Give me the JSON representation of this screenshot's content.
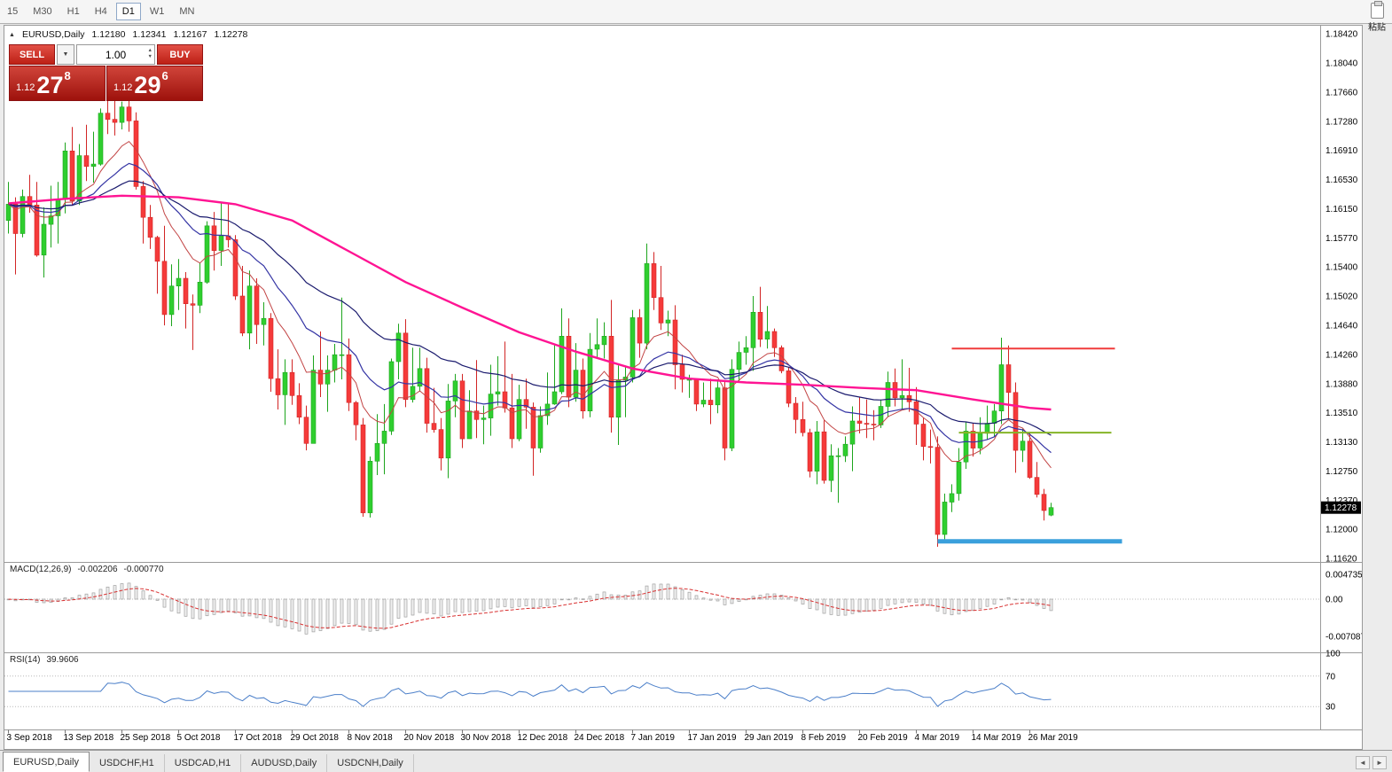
{
  "icons": {
    "collapse": "▲",
    "dropdown": "▼",
    "spin_up": "▲",
    "spin_down": "▼",
    "tab_left": "◄",
    "tab_right": "►"
  },
  "toolbar": {
    "timeframes": [
      "15",
      "M30",
      "H1",
      "H4",
      "D1",
      "W1",
      "MN"
    ],
    "active_timeframe": "D1",
    "paste_label": "粘贴"
  },
  "header": {
    "symbol_period": "EURUSD,Daily",
    "open": "1.12180",
    "high": "1.12341",
    "low": "1.12167",
    "close": "1.12278"
  },
  "trade": {
    "sell_label": "SELL",
    "buy_label": "BUY",
    "volume": "1.00",
    "sell_price": {
      "prefix": "1.12",
      "big": "27",
      "sup": "8"
    },
    "buy_price": {
      "prefix": "1.12",
      "big": "29",
      "sup": "6"
    }
  },
  "indicators": {
    "macd": {
      "name": "MACD(12,26,9)",
      "value_main": "-0.002206",
      "value_signal": "-0.000770",
      "axis_labels": [
        "0.004735",
        "0.00",
        "-0.007087"
      ]
    },
    "rsi": {
      "name": "RSI(14)",
      "value": "39.9606",
      "axis_labels": [
        "100",
        "70",
        "30"
      ]
    }
  },
  "price_scale": {
    "labels": [
      "1.18420",
      "1.18040",
      "1.17660",
      "1.17280",
      "1.16910",
      "1.16530",
      "1.16150",
      "1.15770",
      "1.15400",
      "1.15020",
      "1.14640",
      "1.14260",
      "1.13880",
      "1.13510",
      "1.13130",
      "1.12750",
      "1.12370",
      "1.12000",
      "1.11620"
    ],
    "current_price_tag": "1.12278"
  },
  "time_axis": {
    "labels": [
      {
        "index": 0,
        "label": "3 Sep 2018"
      },
      {
        "index": 8,
        "label": "13 Sep 2018"
      },
      {
        "index": 16,
        "label": "25 Sep 2018"
      },
      {
        "index": 24,
        "label": "5 Oct 2018"
      },
      {
        "index": 32,
        "label": "17 Oct 2018"
      },
      {
        "index": 40,
        "label": "29 Oct 2018"
      },
      {
        "index": 48,
        "label": "8 Nov 2018"
      },
      {
        "index": 56,
        "label": "20 Nov 2018"
      },
      {
        "index": 64,
        "label": "30 Nov 2018"
      },
      {
        "index": 72,
        "label": "12 Dec 2018"
      },
      {
        "index": 80,
        "label": "24 Dec 2018"
      },
      {
        "index": 88,
        "label": "7 Jan 2019"
      },
      {
        "index": 96,
        "label": "17 Jan 2019"
      },
      {
        "index": 104,
        "label": "29 Jan 2019"
      },
      {
        "index": 112,
        "label": "8 Feb 2019"
      },
      {
        "index": 120,
        "label": "20 Feb 2019"
      },
      {
        "index": 128,
        "label": "4 Mar 2019"
      },
      {
        "index": 136,
        "label": "14 Mar 2019"
      },
      {
        "index": 144,
        "label": "26 Mar 2019"
      }
    ]
  },
  "tabs": {
    "items": [
      {
        "label": "EURUSD,Daily",
        "active": true
      },
      {
        "label": "USDCHF,H1",
        "active": false
      },
      {
        "label": "USDCAD,H1",
        "active": false
      },
      {
        "label": "AUDUSD,Daily",
        "active": false
      },
      {
        "label": "USDCNH,Daily",
        "active": false
      }
    ]
  },
  "chart_data": {
    "type": "candlestick",
    "symbol": "EURUSD",
    "period": "Daily",
    "ylim": [
      1.1162,
      1.1842
    ],
    "colors": {
      "up": "#2fce2f",
      "up_stroke": "#1da51d",
      "down": "#f53a3a",
      "down_stroke": "#d22525"
    },
    "candles": [
      [
        1.16,
        1.165,
        1.1583,
        1.1621
      ],
      [
        1.1621,
        1.163,
        1.153,
        1.1583
      ],
      [
        1.1583,
        1.164,
        1.1578,
        1.1631
      ],
      [
        1.1631,
        1.1659,
        1.161,
        1.162
      ],
      [
        1.162,
        1.165,
        1.1553,
        1.1555
      ],
      [
        1.1555,
        1.1617,
        1.1526,
        1.1595
      ],
      [
        1.1595,
        1.1645,
        1.1565,
        1.1606
      ],
      [
        1.1606,
        1.165,
        1.157,
        1.1627
      ],
      [
        1.1627,
        1.1701,
        1.1609,
        1.169
      ],
      [
        1.169,
        1.1721,
        1.162,
        1.1625
      ],
      [
        1.1625,
        1.1699,
        1.162,
        1.1684
      ],
      [
        1.1684,
        1.1724,
        1.1651,
        1.167
      ],
      [
        1.167,
        1.1715,
        1.1649,
        1.1673
      ],
      [
        1.1673,
        1.1745,
        1.1671,
        1.1739
      ],
      [
        1.1739,
        1.1758,
        1.1712,
        1.1731
      ],
      [
        1.1731,
        1.1764,
        1.171,
        1.1727
      ],
      [
        1.1727,
        1.1754,
        1.1718,
        1.1747
      ],
      [
        1.1747,
        1.1759,
        1.1715,
        1.1729
      ],
      [
        1.1729,
        1.174,
        1.164,
        1.1644
      ],
      [
        1.1644,
        1.1651,
        1.157,
        1.1604
      ],
      [
        1.1604,
        1.162,
        1.1563,
        1.1578
      ],
      [
        1.1578,
        1.158,
        1.1505,
        1.1547
      ],
      [
        1.1547,
        1.1593,
        1.1464,
        1.1478
      ],
      [
        1.1478,
        1.1543,
        1.1463,
        1.1515
      ],
      [
        1.1515,
        1.155,
        1.1484,
        1.1525
      ],
      [
        1.1525,
        1.1533,
        1.146,
        1.1492
      ],
      [
        1.1492,
        1.1504,
        1.1432,
        1.149
      ],
      [
        1.149,
        1.1545,
        1.148,
        1.152
      ],
      [
        1.152,
        1.1599,
        1.1518,
        1.1593
      ],
      [
        1.1593,
        1.1611,
        1.1535,
        1.1561
      ],
      [
        1.1561,
        1.1622,
        1.1541,
        1.158
      ],
      [
        1.158,
        1.1621,
        1.1565,
        1.1575
      ],
      [
        1.1575,
        1.1581,
        1.1497,
        1.1502
      ],
      [
        1.1502,
        1.1541,
        1.145,
        1.1454
      ],
      [
        1.1454,
        1.1535,
        1.1433,
        1.1515
      ],
      [
        1.1515,
        1.1525,
        1.144,
        1.1465
      ],
      [
        1.1465,
        1.1494,
        1.1438,
        1.1473
      ],
      [
        1.1473,
        1.148,
        1.1378,
        1.1395
      ],
      [
        1.1395,
        1.1433,
        1.1355,
        1.1374
      ],
      [
        1.1374,
        1.142,
        1.1335,
        1.1403
      ],
      [
        1.1403,
        1.142,
        1.1361,
        1.1373
      ],
      [
        1.1373,
        1.1389,
        1.1336,
        1.1345
      ],
      [
        1.1345,
        1.136,
        1.1302,
        1.1311
      ],
      [
        1.1311,
        1.1425,
        1.1311,
        1.1406
      ],
      [
        1.1406,
        1.1456,
        1.1371,
        1.1388
      ],
      [
        1.1388,
        1.1425,
        1.1352,
        1.1406
      ],
      [
        1.1406,
        1.144,
        1.139,
        1.1426
      ],
      [
        1.1426,
        1.15,
        1.1394,
        1.1426
      ],
      [
        1.1426,
        1.1447,
        1.1353,
        1.1364
      ],
      [
        1.1364,
        1.1366,
        1.1315,
        1.1335
      ],
      [
        1.1335,
        1.1344,
        1.1216,
        1.1221
      ],
      [
        1.1221,
        1.1294,
        1.1215,
        1.1288
      ],
      [
        1.1288,
        1.1349,
        1.127,
        1.1311
      ],
      [
        1.1311,
        1.1362,
        1.1271,
        1.1327
      ],
      [
        1.1327,
        1.1421,
        1.1322,
        1.1417
      ],
      [
        1.1417,
        1.1466,
        1.1394,
        1.1454
      ],
      [
        1.1454,
        1.1472,
        1.1358,
        1.1368
      ],
      [
        1.1368,
        1.1435,
        1.1364,
        1.1385
      ],
      [
        1.1385,
        1.1435,
        1.1378,
        1.1408
      ],
      [
        1.1408,
        1.1422,
        1.1325,
        1.1337
      ],
      [
        1.1337,
        1.1383,
        1.1325,
        1.1329
      ],
      [
        1.1329,
        1.1344,
        1.1276,
        1.1292
      ],
      [
        1.1292,
        1.1388,
        1.1266,
        1.1366
      ],
      [
        1.1366,
        1.1401,
        1.1345,
        1.1392
      ],
      [
        1.1392,
        1.1401,
        1.1305,
        1.1317
      ],
      [
        1.1317,
        1.138,
        1.1317,
        1.1353
      ],
      [
        1.1353,
        1.1419,
        1.1318,
        1.1342
      ],
      [
        1.1342,
        1.136,
        1.131,
        1.1344
      ],
      [
        1.1344,
        1.1413,
        1.1321,
        1.1375
      ],
      [
        1.1375,
        1.1424,
        1.136,
        1.1378
      ],
      [
        1.1378,
        1.1443,
        1.1351,
        1.1357
      ],
      [
        1.1357,
        1.1401,
        1.1305,
        1.1317
      ],
      [
        1.1317,
        1.1387,
        1.1314,
        1.1368
      ],
      [
        1.1368,
        1.1395,
        1.133,
        1.1358
      ],
      [
        1.1358,
        1.1364,
        1.1269,
        1.1305
      ],
      [
        1.1305,
        1.1359,
        1.1299,
        1.1347
      ],
      [
        1.1347,
        1.1403,
        1.1335,
        1.1362
      ],
      [
        1.1362,
        1.144,
        1.1361,
        1.1378
      ],
      [
        1.1378,
        1.1486,
        1.1375,
        1.145
      ],
      [
        1.145,
        1.1473,
        1.1358,
        1.1371
      ],
      [
        1.1371,
        1.1441,
        1.1365,
        1.1406
      ],
      [
        1.1406,
        1.1421,
        1.1343,
        1.1353
      ],
      [
        1.1353,
        1.1454,
        1.1345,
        1.1433
      ],
      [
        1.1433,
        1.1473,
        1.1422,
        1.1439
      ],
      [
        1.1439,
        1.1468,
        1.1421,
        1.145
      ],
      [
        1.145,
        1.1497,
        1.1325,
        1.1345
      ],
      [
        1.1345,
        1.1412,
        1.1309,
        1.1393
      ],
      [
        1.1393,
        1.1411,
        1.1345,
        1.1397
      ],
      [
        1.1397,
        1.1484,
        1.139,
        1.1474
      ],
      [
        1.1474,
        1.1485,
        1.1422,
        1.1441
      ],
      [
        1.1441,
        1.157,
        1.1433,
        1.1544
      ],
      [
        1.1544,
        1.1559,
        1.1484,
        1.15
      ],
      [
        1.15,
        1.1541,
        1.1458,
        1.1467
      ],
      [
        1.1467,
        1.1483,
        1.145,
        1.1471
      ],
      [
        1.1471,
        1.149,
        1.1381,
        1.1413
      ],
      [
        1.1413,
        1.1426,
        1.1377,
        1.1394
      ],
      [
        1.1394,
        1.14,
        1.137,
        1.1394
      ],
      [
        1.1394,
        1.1395,
        1.1353,
        1.1362
      ],
      [
        1.1362,
        1.139,
        1.1358,
        1.1367
      ],
      [
        1.1367,
        1.1395,
        1.1336,
        1.1361
      ],
      [
        1.1361,
        1.1394,
        1.135,
        1.1383
      ],
      [
        1.1383,
        1.1392,
        1.1289,
        1.1305
      ],
      [
        1.1305,
        1.142,
        1.1301,
        1.1407
      ],
      [
        1.1407,
        1.1443,
        1.139,
        1.1429
      ],
      [
        1.1429,
        1.145,
        1.1413,
        1.1435
      ],
      [
        1.1435,
        1.1502,
        1.1405,
        1.1481
      ],
      [
        1.1481,
        1.1514,
        1.1436,
        1.1446
      ],
      [
        1.1446,
        1.1489,
        1.1434,
        1.1456
      ],
      [
        1.1456,
        1.146,
        1.1423,
        1.1435
      ],
      [
        1.1435,
        1.1438,
        1.1402,
        1.1405
      ],
      [
        1.1405,
        1.141,
        1.1358,
        1.1363
      ],
      [
        1.1363,
        1.1371,
        1.1324,
        1.1342
      ],
      [
        1.1342,
        1.1365,
        1.132,
        1.1325
      ],
      [
        1.1325,
        1.133,
        1.1267,
        1.1275
      ],
      [
        1.1275,
        1.134,
        1.1258,
        1.1326
      ],
      [
        1.1326,
        1.1341,
        1.1259,
        1.1263
      ],
      [
        1.1263,
        1.131,
        1.1248,
        1.1295
      ],
      [
        1.1295,
        1.1305,
        1.1234,
        1.1295
      ],
      [
        1.1295,
        1.132,
        1.1287,
        1.131
      ],
      [
        1.131,
        1.1359,
        1.1275,
        1.134
      ],
      [
        1.134,
        1.1371,
        1.1324,
        1.1337
      ],
      [
        1.1337,
        1.1368,
        1.1318,
        1.1336
      ],
      [
        1.1336,
        1.1354,
        1.1315,
        1.1335
      ],
      [
        1.1335,
        1.1368,
        1.1331,
        1.1359
      ],
      [
        1.1359,
        1.1404,
        1.1345,
        1.139
      ],
      [
        1.139,
        1.1408,
        1.1359,
        1.137
      ],
      [
        1.137,
        1.142,
        1.1355,
        1.1373
      ],
      [
        1.1373,
        1.1409,
        1.1352,
        1.1365
      ],
      [
        1.1365,
        1.1384,
        1.1309,
        1.1336
      ],
      [
        1.1336,
        1.1344,
        1.1289,
        1.1307
      ],
      [
        1.1307,
        1.1329,
        1.1285,
        1.1306
      ],
      [
        1.1306,
        1.132,
        1.1177,
        1.1193
      ],
      [
        1.1193,
        1.1246,
        1.1185,
        1.1235
      ],
      [
        1.1235,
        1.1258,
        1.1222,
        1.1246
      ],
      [
        1.1246,
        1.1305,
        1.1237,
        1.1287
      ],
      [
        1.1287,
        1.1339,
        1.1278,
        1.1327
      ],
      [
        1.1327,
        1.1337,
        1.1294,
        1.1305
      ],
      [
        1.1305,
        1.1345,
        1.1297,
        1.1324
      ],
      [
        1.1324,
        1.136,
        1.1316,
        1.1337
      ],
      [
        1.1337,
        1.1362,
        1.132,
        1.1353
      ],
      [
        1.1353,
        1.1448,
        1.1336,
        1.1413
      ],
      [
        1.1413,
        1.1438,
        1.1343,
        1.1377
      ],
      [
        1.1377,
        1.139,
        1.1273,
        1.1302
      ],
      [
        1.1302,
        1.133,
        1.1287,
        1.1314
      ],
      [
        1.1314,
        1.1326,
        1.1265,
        1.1267
      ],
      [
        1.1267,
        1.1287,
        1.1241,
        1.1245
      ],
      [
        1.1245,
        1.1252,
        1.1211,
        1.1224
      ],
      [
        1.1218,
        1.12341,
        1.12167,
        1.12278
      ]
    ],
    "overlays": {
      "moving_averages": [
        {
          "period": 10,
          "method": "ema",
          "color": "#c24444",
          "width": 1
        },
        {
          "period": 20,
          "method": "ema",
          "color": "#3434a4",
          "width": 1.2
        },
        {
          "period": 40,
          "method": "ema",
          "color": "#1b1b6e",
          "width": 1.2
        }
      ],
      "ma_long": {
        "color": "#ff1493",
        "width": 2.4,
        "points": [
          [
            0,
            1.1622
          ],
          [
            8,
            1.1628
          ],
          [
            16,
            1.1632
          ],
          [
            24,
            1.163
          ],
          [
            32,
            1.1621
          ],
          [
            40,
            1.16
          ],
          [
            48,
            1.156
          ],
          [
            56,
            1.152
          ],
          [
            64,
            1.1487
          ],
          [
            72,
            1.1455
          ],
          [
            80,
            1.143
          ],
          [
            88,
            1.1408
          ],
          [
            96,
            1.1395
          ],
          [
            104,
            1.139
          ],
          [
            112,
            1.1387
          ],
          [
            120,
            1.1383
          ],
          [
            128,
            1.138
          ],
          [
            136,
            1.1368
          ],
          [
            144,
            1.1357
          ],
          [
            147,
            1.1355
          ]
        ]
      },
      "hlines": [
        {
          "name": "resistance-line",
          "price": 1.1434,
          "from_index": 133,
          "to_index": 156,
          "color": "#f03b3b",
          "width": 2
        },
        {
          "name": "mid-line",
          "price": 1.1325,
          "from_index": 134,
          "to_index": 155.5,
          "color": "#85b427",
          "width": 2
        },
        {
          "name": "support-line",
          "price": 1.1184,
          "from_index": 131,
          "to_index": 157,
          "color": "#3aa0dc",
          "width": 5
        }
      ]
    },
    "macd_params": [
      12,
      26,
      9
    ],
    "rsi_params": [
      14
    ]
  }
}
